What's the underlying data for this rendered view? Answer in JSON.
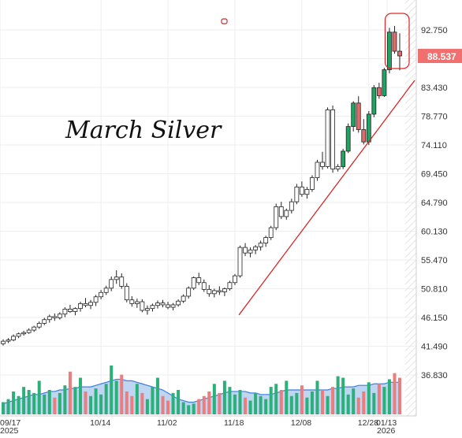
{
  "chart_data": {
    "type": "candlestick",
    "title": "March Silver",
    "price_axis": {
      "ticks": [
        "92.750",
        "88.090",
        "83.430",
        "78.770",
        "74.110",
        "69.450",
        "64.790",
        "60.130",
        "55.470",
        "50.810",
        "46.150",
        "41.490",
        "36.830"
      ],
      "min": 36.83,
      "max": 92.75,
      "current_price": "88.537",
      "position": "right"
    },
    "x_axis": {
      "ticks": [
        "09/17",
        "10/14",
        "11/02",
        "11/18",
        "12/08",
        "12/28",
        "01/13"
      ],
      "year_labels": [
        "2025",
        "2026"
      ]
    },
    "grid": true,
    "candles": [
      [
        41.9,
        42.6,
        41.6,
        42.3
      ],
      [
        42.3,
        42.8,
        42.0,
        42.5
      ],
      [
        42.5,
        43.4,
        42.3,
        43.1
      ],
      [
        43.1,
        43.7,
        42.8,
        43.5
      ],
      [
        43.5,
        44.0,
        43.2,
        43.7
      ],
      [
        43.7,
        44.4,
        43.5,
        44.1
      ],
      [
        44.1,
        44.8,
        43.8,
        44.6
      ],
      [
        44.6,
        45.5,
        44.3,
        45.2
      ],
      [
        45.2,
        46.1,
        44.9,
        45.8
      ],
      [
        45.8,
        46.6,
        45.3,
        46.3
      ],
      [
        46.3,
        46.8,
        45.6,
        46.1
      ],
      [
        46.1,
        47.0,
        45.8,
        46.7
      ],
      [
        46.7,
        47.8,
        46.2,
        47.5
      ],
      [
        47.5,
        48.2,
        46.9,
        47.1
      ],
      [
        47.1,
        47.8,
        46.5,
        47.6
      ],
      [
        47.6,
        48.7,
        47.1,
        48.4
      ],
      [
        48.4,
        49.3,
        47.8,
        48.1
      ],
      [
        48.1,
        49.0,
        47.5,
        48.6
      ],
      [
        48.6,
        49.8,
        48.0,
        49.5
      ],
      [
        49.5,
        50.6,
        49.1,
        50.2
      ],
      [
        50.2,
        51.3,
        49.8,
        50.9
      ],
      [
        50.9,
        52.8,
        50.4,
        52.3
      ],
      [
        52.3,
        53.8,
        51.6,
        52.7
      ],
      [
        52.7,
        53.3,
        50.8,
        51.2
      ],
      [
        51.2,
        51.7,
        48.6,
        49.0
      ],
      [
        49.0,
        49.6,
        47.9,
        48.4
      ],
      [
        48.4,
        49.2,
        47.7,
        48.7
      ],
      [
        48.7,
        49.1,
        47.0,
        47.3
      ],
      [
        47.3,
        48.1,
        46.6,
        47.6
      ],
      [
        47.6,
        48.4,
        47.1,
        48.1
      ],
      [
        48.1,
        48.9,
        47.6,
        48.5
      ],
      [
        48.5,
        49.0,
        47.8,
        48.2
      ],
      [
        48.2,
        48.7,
        47.5,
        47.8
      ],
      [
        47.8,
        48.5,
        47.3,
        48.2
      ],
      [
        48.2,
        49.1,
        47.9,
        48.8
      ],
      [
        48.8,
        49.9,
        48.5,
        49.6
      ],
      [
        49.6,
        51.2,
        49.2,
        50.9
      ],
      [
        50.9,
        52.8,
        50.6,
        52.6
      ],
      [
        52.6,
        53.4,
        51.4,
        51.8
      ],
      [
        51.8,
        52.3,
        50.3,
        50.7
      ],
      [
        50.7,
        51.4,
        49.5,
        50.0
      ],
      [
        50.0,
        50.8,
        49.4,
        50.5
      ],
      [
        50.5,
        51.2,
        49.8,
        50.3
      ],
      [
        50.3,
        51.0,
        49.6,
        50.8
      ],
      [
        50.8,
        52.1,
        50.5,
        51.8
      ],
      [
        51.8,
        53.2,
        51.4,
        52.9
      ],
      [
        52.9,
        57.8,
        52.6,
        57.5
      ],
      [
        57.5,
        58.2,
        56.1,
        56.6
      ],
      [
        56.6,
        57.5,
        55.9,
        57.1
      ],
      [
        57.1,
        57.9,
        56.4,
        57.6
      ],
      [
        57.6,
        58.6,
        57.0,
        58.2
      ],
      [
        58.2,
        59.4,
        57.6,
        59.1
      ],
      [
        59.1,
        61.0,
        58.7,
        60.7
      ],
      [
        60.7,
        64.6,
        60.3,
        64.1
      ],
      [
        64.1,
        64.9,
        62.1,
        62.5
      ],
      [
        62.5,
        63.8,
        62.0,
        63.5
      ],
      [
        63.5,
        65.4,
        63.0,
        64.9
      ],
      [
        64.9,
        67.8,
        64.5,
        67.3
      ],
      [
        67.3,
        68.2,
        65.7,
        66.1
      ],
      [
        66.1,
        67.3,
        65.4,
        66.9
      ],
      [
        66.9,
        69.2,
        66.5,
        68.8
      ],
      [
        68.8,
        71.7,
        68.3,
        71.3
      ],
      [
        71.3,
        73.0,
        70.1,
        70.6
      ],
      [
        70.6,
        80.2,
        70.3,
        79.8
      ],
      [
        79.8,
        80.5,
        69.6,
        70.2
      ],
      [
        70.2,
        71.0,
        69.8,
        70.6
      ],
      [
        70.6,
        73.5,
        70.2,
        73.1
      ],
      [
        73.1,
        77.6,
        72.8,
        77.1
      ],
      [
        77.1,
        81.2,
        76.3,
        80.9
      ],
      [
        80.9,
        82.0,
        76.1,
        76.6
      ],
      [
        76.6,
        78.3,
        74.2,
        74.6
      ],
      [
        74.6,
        79.6,
        74.1,
        79.1
      ],
      [
        79.1,
        83.8,
        78.6,
        83.4
      ],
      [
        83.4,
        84.2,
        81.6,
        82.1
      ],
      [
        82.1,
        86.6,
        81.9,
        86.3
      ],
      [
        86.3,
        93.1,
        85.7,
        92.4
      ],
      [
        92.4,
        93.4,
        88.9,
        89.3
      ],
      [
        89.3,
        92.2,
        86.2,
        88.537
      ]
    ],
    "candle_colors": {
      "up": "#1fa463",
      "down": "#e06b6b",
      "recent_from_index": 66
    },
    "volume": {
      "values": [
        8,
        10,
        15,
        12,
        18,
        16,
        14,
        22,
        13,
        16,
        11,
        14,
        19,
        28,
        18,
        24,
        15,
        12,
        17,
        13,
        20,
        32,
        22,
        26,
        15,
        12,
        20,
        14,
        10,
        18,
        24,
        12,
        9,
        14,
        16,
        8,
        6,
        7,
        10,
        12,
        15,
        20,
        14,
        22,
        18,
        13,
        16,
        11,
        9,
        14,
        12,
        10,
        18,
        20,
        16,
        22,
        12,
        14,
        19,
        11,
        15,
        22,
        16,
        12,
        18,
        25,
        24,
        13,
        17,
        11,
        15,
        21,
        14,
        20,
        18,
        23,
        27,
        24
      ],
      "ma_values": [
        7,
        8,
        9,
        10,
        11,
        12,
        13,
        13,
        14,
        15,
        15,
        16,
        16,
        17,
        17,
        18,
        18,
        18,
        19,
        20,
        21,
        22,
        23,
        23,
        22,
        22,
        21,
        20,
        19,
        18,
        17,
        16,
        14,
        12,
        10,
        9,
        8,
        8,
        9,
        10,
        11,
        12,
        13,
        14,
        15,
        15,
        15,
        15,
        14,
        14,
        13,
        13,
        13,
        14,
        15,
        16,
        16,
        16,
        16,
        16,
        16,
        16,
        16,
        16,
        17,
        17,
        18,
        18,
        18,
        19,
        19,
        19,
        20,
        20,
        20,
        21,
        21,
        21
      ],
      "up_color": "#2cb07a",
      "down_color": "#ec7d7d",
      "ma_fill": "#a9c8ef",
      "ma_line": "#3d7ee0"
    },
    "trendline": {
      "color": "#d62728",
      "from": {
        "index": 47,
        "price": 48.6
      },
      "to": {
        "index": 78,
        "price": 81.0
      }
    },
    "annotation": {
      "type": "rounded-rectangle",
      "color": "#d62728",
      "around_last_candles": 2
    },
    "price_label_color": "#f07070"
  }
}
